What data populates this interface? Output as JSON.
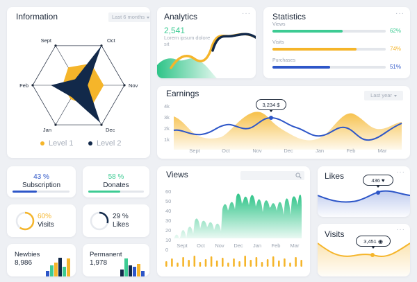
{
  "colors": {
    "yellow": "#f5b52a",
    "navy": "#12294a",
    "green": "#3dcb93",
    "blue": "#2d56c8",
    "grey": "#9aa3b0"
  },
  "information": {
    "title": "Information",
    "dropdown": "Last 6 months",
    "months": [
      "Oct",
      "Nov",
      "Dec",
      "Jan",
      "Feb",
      "Sept"
    ],
    "level1_label": "Level 1",
    "level2_label": "Level 2",
    "level1_values": [
      0.55,
      0.55,
      0.55,
      0.35,
      0.35,
      0.45
    ],
    "level2_values": [
      1.0,
      0.2,
      0.95,
      0.3,
      0.6,
      0.15
    ]
  },
  "analytics": {
    "title": "Analytics",
    "value": "2,541",
    "caption": "Lorem ipsum dolore sit"
  },
  "statistics": {
    "title": "Statistics",
    "items": [
      {
        "label": "Views",
        "percent": 62,
        "text": "62%",
        "color": "#3dcb93"
      },
      {
        "label": "Visits",
        "percent": 74,
        "text": "74%",
        "color": "#f5b52a"
      },
      {
        "label": "Purchases",
        "percent": 51,
        "text": "51%",
        "color": "#2d56c8"
      }
    ]
  },
  "earnings": {
    "title": "Earnings",
    "dropdown": "Last year",
    "tooltip": "3,234 $",
    "y_ticks": [
      "4k",
      "3k",
      "2k",
      "1k"
    ],
    "months": [
      "Sept",
      "Oct",
      "Nov",
      "Dec",
      "Jan",
      "Feb",
      "Mar"
    ]
  },
  "chart_data": [
    {
      "type": "area",
      "title": "Earnings",
      "categories": [
        "Sept",
        "Oct",
        "Nov",
        "Dec",
        "Jan",
        "Feb",
        "Mar"
      ],
      "ylim": [
        0,
        4000
      ],
      "annotation": "3,234 $",
      "series": [
        {
          "values": [
            2600,
            1800,
            3200,
            2300,
            1900,
            3300,
            2000
          ]
        },
        {
          "values": [
            1800,
            1800,
            3230,
            2400,
            1600,
            2500,
            2800
          ]
        }
      ]
    },
    {
      "type": "area",
      "title": "Views",
      "categories": [
        "Sept",
        "Oct",
        "Nov",
        "Dec",
        "Jan",
        "Feb",
        "Mar"
      ],
      "ylim": [
        0,
        60
      ],
      "values": [
        15,
        22,
        18,
        50,
        45,
        40,
        48
      ]
    }
  ],
  "subscription": {
    "value": "43 %",
    "label": "Subscription",
    "percent": 43
  },
  "donates": {
    "value": "58 %",
    "label": "Donates",
    "percent": 58
  },
  "visits_ring": {
    "value": "60%",
    "label": "Visits",
    "percent": 60
  },
  "likes_ring": {
    "value": "29 %",
    "label": "Likes",
    "percent": 29
  },
  "newbies": {
    "label": "Newbies",
    "value": "8,986"
  },
  "permanent": {
    "label": "Permanent",
    "value": "1,978"
  },
  "views": {
    "title": "Views",
    "y_ticks": [
      "60",
      "50",
      "40",
      "30",
      "20",
      "10",
      "0"
    ],
    "months": [
      "Sept",
      "Oct",
      "Nov",
      "Dec",
      "Jan",
      "Feb",
      "Mar"
    ]
  },
  "likes": {
    "title": "Likes",
    "tooltip": "436"
  },
  "visits_card": {
    "title": "Visits",
    "tooltip": "3,451"
  }
}
